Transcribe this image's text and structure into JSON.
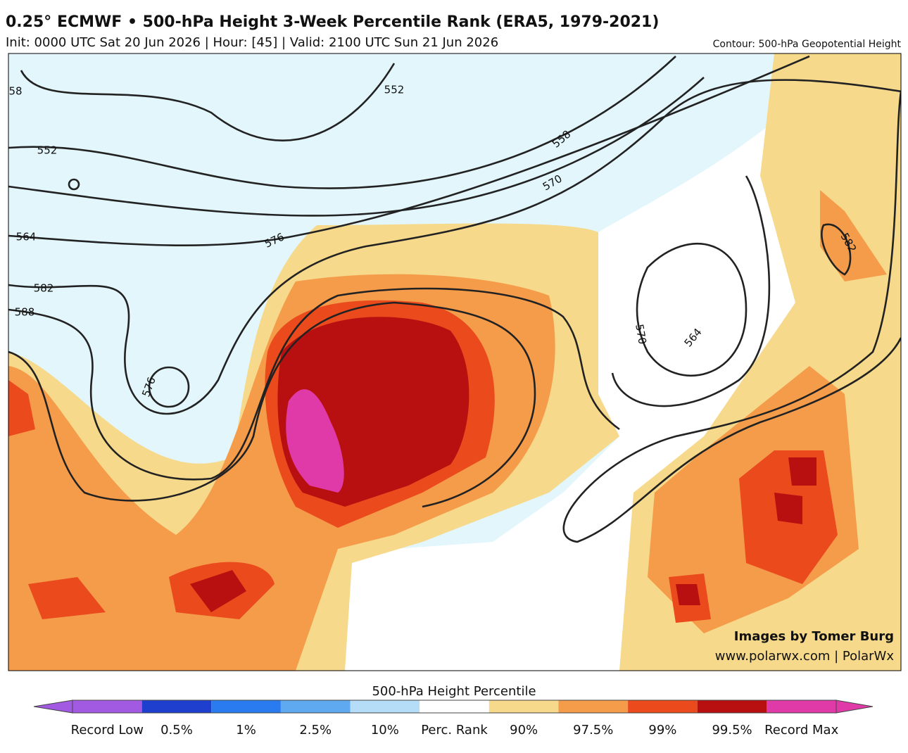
{
  "header": {
    "title": "0.25° ECMWF • 500-hPa Height 3-Week Percentile Rank (ERA5, 1979-2021)",
    "subtitle": "Init: 0000 UTC Sat 20 Jun 2026 | Hour: [45] | Valid: 2100 UTC Sun 21 Jun 2026",
    "contour_note": "Contour: 500-hPa Geopotential Height"
  },
  "map": {
    "contour_labels": [
      "58",
      "552",
      "552",
      "564",
      "582",
      "588",
      "576",
      "576",
      "558",
      "570",
      "570",
      "564",
      "582"
    ],
    "credit": [
      "Images by Tomer Burg",
      "www.polarwx.com | PolarWx"
    ]
  },
  "colorbar": {
    "title": "500-hPa Height Percentile",
    "labels": [
      "Record Low",
      "0.5%",
      "1%",
      "2.5%",
      "10%",
      "Perc. Rank",
      "90%",
      "97.5%",
      "99%",
      "99.5%",
      "Record Max"
    ],
    "colors": [
      "#a35ae2",
      "#1f3fcf",
      "#2b7bf0",
      "#5fa9f0",
      "#b5ddf8",
      "#ffffff",
      "#f6d98a",
      "#f59c4b",
      "#ea4a1c",
      "#b81010",
      "#e03aa8"
    ]
  }
}
